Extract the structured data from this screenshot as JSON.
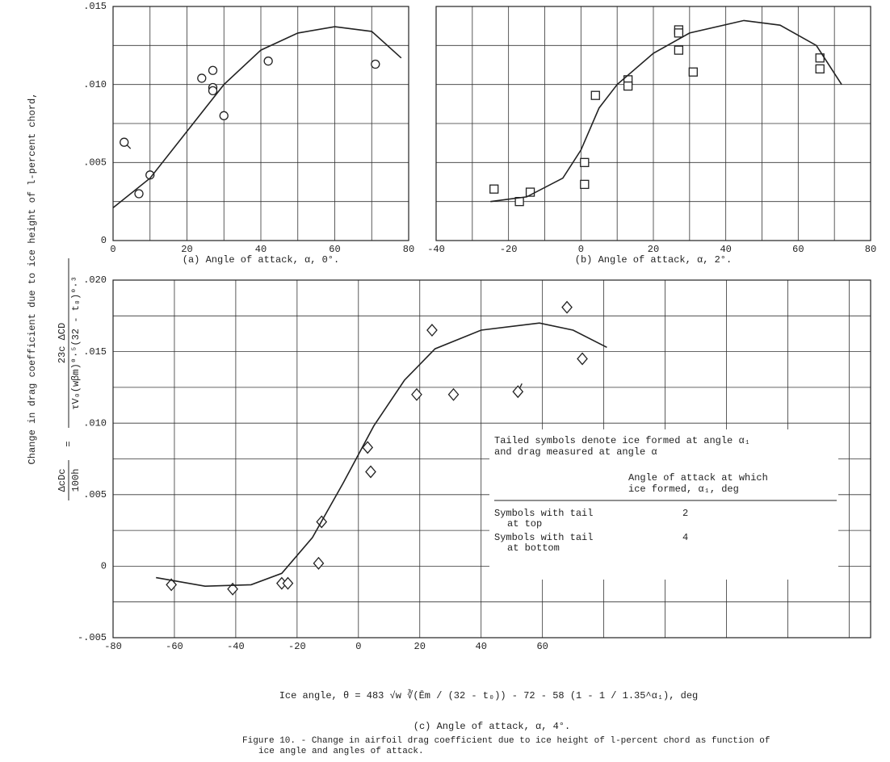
{
  "figure": {
    "ylabel": "Change in drag coefficient due to ice height of l-percent chord,",
    "ylabel_formula": {
      "lhs_num": "ΔcDc",
      "lhs_den": "100h",
      "equals": "=",
      "rhs_num": "23c ΔCD",
      "rhs_den": "τV₀(wβm)⁰·⁵(32 - t₀)⁰·³"
    },
    "caption": [
      "Figure 10. - Change in airfoil drag coefficient due to ice height of l-percent chord as function of",
      "ice angle and angles of attack."
    ]
  },
  "chart_data": [
    {
      "type": "scatter",
      "caption": "(a) Angle of attack, α, 0°.",
      "xlim": [
        0,
        80
      ],
      "xticks": [
        0,
        20,
        40,
        60,
        80
      ],
      "xminor": [
        10,
        30,
        50,
        70
      ],
      "ylim": [
        0,
        0.015
      ],
      "yticks": [
        0,
        {
          "value": 0.005,
          "label": ".005"
        },
        {
          "value": 0.01,
          "label": ".010"
        },
        {
          "value": 0.015,
          "label": ".015"
        }
      ],
      "yminor": [
        0.0025,
        0.0075,
        0.0125
      ],
      "grid": true,
      "series": [
        {
          "marker": "circle",
          "color": "#222222",
          "x": [
            7,
            10,
            24,
            27,
            27,
            27,
            30,
            42,
            71
          ],
          "values": [
            0.003,
            0.0042,
            0.0104,
            0.0109,
            0.0098,
            0.0096,
            0.008,
            0.0115,
            0.0113
          ]
        },
        {
          "marker": "circle",
          "tail": "bottom",
          "color": "#222222",
          "x": [
            3
          ],
          "values": [
            0.0063
          ]
        },
        {
          "marker": "line",
          "color": "#222222",
          "x": [
            0,
            10,
            20,
            30,
            40,
            50,
            60,
            70,
            78
          ],
          "values": [
            0.0021,
            0.004,
            0.007,
            0.01,
            0.0122,
            0.0133,
            0.0137,
            0.0134,
            0.0117
          ]
        }
      ]
    },
    {
      "type": "scatter",
      "caption": "(b) Angle of attack, α, 2°.",
      "xlim": [
        -40,
        80
      ],
      "xticks": [
        -40,
        -20,
        0,
        20,
        40,
        60,
        80
      ],
      "xminor": [
        -30,
        -10,
        10,
        30,
        50,
        70
      ],
      "ylim": [
        0,
        0.015
      ],
      "yticks": [],
      "yminor": [
        0.0025,
        0.005,
        0.0075,
        0.01,
        0.0125
      ],
      "grid": true,
      "series": [
        {
          "marker": "square",
          "color": "#222222",
          "x": [
            -24,
            -17,
            -14,
            1,
            1,
            4,
            13,
            13,
            27,
            27,
            27,
            31,
            66,
            66
          ],
          "values": [
            0.0033,
            0.0025,
            0.0031,
            0.005,
            0.0036,
            0.0093,
            0.0103,
            0.0099,
            0.0135,
            0.0133,
            0.0122,
            0.0108,
            0.0117,
            0.011
          ]
        },
        {
          "marker": "line",
          "color": "#222222",
          "x": [
            -25,
            -15,
            -5,
            0,
            5,
            10,
            20,
            30,
            45,
            55,
            65,
            72
          ],
          "values": [
            0.0025,
            0.0028,
            0.004,
            0.0058,
            0.0085,
            0.01,
            0.012,
            0.0133,
            0.0141,
            0.0138,
            0.0125,
            0.01
          ]
        }
      ]
    },
    {
      "type": "scatter",
      "caption": "(c) Angle of attack, α, 4°.",
      "xlabel": "Ice angle, θ = 483 √w ∛(Ēm / (32 - t₀)) - 72 - 58 (1 - 1 / 1.35^α₁), deg",
      "xlim": [
        -80,
        167
      ],
      "xticks": [
        -80,
        -60,
        -40,
        -20,
        0,
        20,
        40,
        60
      ],
      "xminor": [
        80,
        100,
        120,
        140,
        160
      ],
      "ylim": [
        -0.005,
        0.02
      ],
      "yticks": [
        {
          "value": -0.005,
          "label": "-.005"
        },
        0,
        {
          "value": 0.005,
          "label": ".005"
        },
        {
          "value": 0.01,
          "label": ".010"
        },
        {
          "value": 0.015,
          "label": ".015"
        },
        {
          "value": 0.02,
          "label": ".020"
        }
      ],
      "yminor": [
        -0.0025,
        0.0025,
        0.0075,
        0.0125,
        0.0175
      ],
      "grid": true,
      "annotation": {
        "lines": [
          "Tailed symbols denote ice formed at angle  α₁",
          "and drag measured at angle  α"
        ],
        "header": [
          "Angle of attack at which",
          "ice formed, α₁, deg"
        ],
        "rows": [
          {
            "label": [
              "Symbols with tail",
              "at top"
            ],
            "value": 2
          },
          {
            "label": [
              "Symbols with tail",
              "at bottom"
            ],
            "value": 4
          }
        ]
      },
      "series": [
        {
          "marker": "diamond",
          "color": "#222222",
          "x": [
            -61,
            -41,
            -25,
            -23,
            -13,
            -12,
            3,
            4,
            19,
            24,
            31,
            73,
            68
          ],
          "values": [
            -0.0013,
            -0.0016,
            -0.0012,
            -0.0012,
            0.0002,
            0.0031,
            0.0083,
            0.0066,
            0.012,
            0.0165,
            0.012,
            0.0145,
            0.0181
          ]
        },
        {
          "marker": "diamond",
          "tail": "top",
          "color": "#222222",
          "x": [
            52
          ],
          "values": [
            0.0122
          ]
        },
        {
          "marker": "line",
          "color": "#222222",
          "x": [
            -66,
            -50,
            -35,
            -25,
            -15,
            -5,
            5,
            15,
            25,
            40,
            59,
            70,
            81
          ],
          "values": [
            -0.0008,
            -0.0014,
            -0.0013,
            -0.0005,
            0.002,
            0.0058,
            0.0098,
            0.013,
            0.0152,
            0.0165,
            0.017,
            0.0165,
            0.0153
          ]
        }
      ]
    }
  ]
}
